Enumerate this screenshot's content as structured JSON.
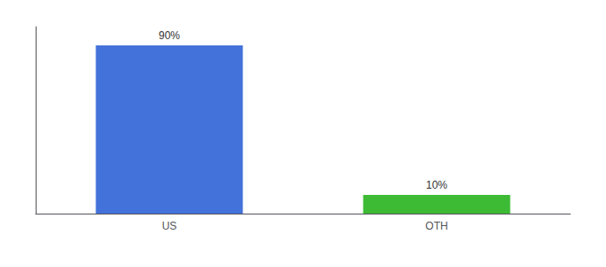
{
  "chart_data": {
    "type": "bar",
    "categories": [
      "US",
      "OTH"
    ],
    "values": [
      90,
      10
    ],
    "value_labels": [
      "90%",
      "10%"
    ],
    "colors": [
      "#4472db",
      "#3dbb35"
    ],
    "ylim": [
      0,
      100
    ],
    "data_labels": true,
    "tick_labels": "x",
    "grid": false
  }
}
